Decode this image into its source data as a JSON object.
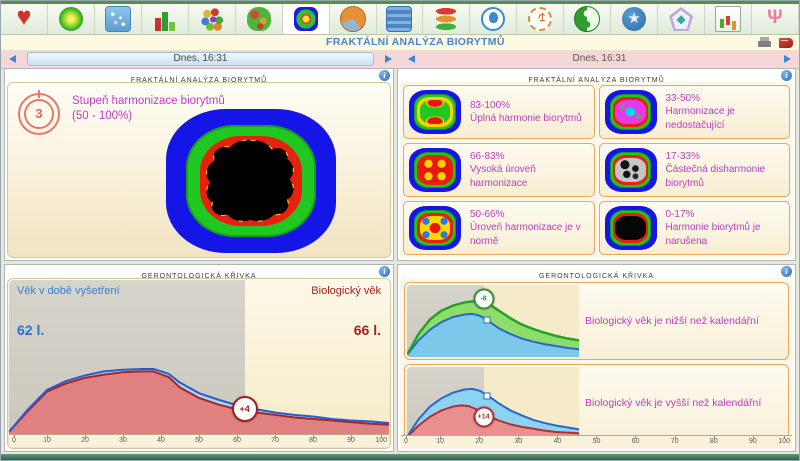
{
  "title_bar": {
    "title": "FRAKTÁLNÍ ANALÝZA BIORYTMŮ"
  },
  "toolbar": {
    "icons": [
      {
        "name": "heart",
        "active": false
      },
      {
        "name": "aura",
        "active": false
      },
      {
        "name": "scatter-card",
        "active": false
      },
      {
        "name": "bar-chart",
        "active": false
      },
      {
        "name": "molecules",
        "active": false
      },
      {
        "name": "brain-map",
        "active": false
      },
      {
        "name": "fractal",
        "active": true
      },
      {
        "name": "pie-chart",
        "active": false
      },
      {
        "name": "waveform",
        "active": false
      },
      {
        "name": "layers",
        "active": false
      },
      {
        "name": "head-profile",
        "active": false
      },
      {
        "name": "om",
        "active": false
      },
      {
        "name": "yin-yang",
        "active": false
      },
      {
        "name": "star",
        "active": false
      },
      {
        "name": "pentagon-cube",
        "active": false
      },
      {
        "name": "report-chart",
        "active": false
      },
      {
        "name": "antenna",
        "active": false
      }
    ]
  },
  "header_icons": [
    {
      "name": "printer"
    },
    {
      "name": "book"
    }
  ],
  "date_bar_left": {
    "label": "Dnes, 16:31"
  },
  "date_bar_right": {
    "label": "Dnes, 16:31"
  },
  "colors": {
    "accent_magenta": "#c23cc2",
    "label_blue": "#3a7fd0",
    "label_dark_red": "#a82020",
    "card_border_orange": "#e8a85a",
    "title_blue": "#4a86c8"
  },
  "panels": {
    "fractal_main": {
      "header": "FRAKTÁLNÍ ANALÝZA BIORYTMŮ",
      "gauge_value": "3",
      "label_line1": "Stupeň harmonizace biorytmů",
      "label_line2": "(50 - 100%)"
    },
    "fractal_legend": {
      "header": "FRAKTÁLNÍ ANALÝZA BIORYTMŮ",
      "cards": [
        {
          "range": "83-100%",
          "text": "Úplná harmonie biorytmů",
          "variant": "green-harmony"
        },
        {
          "range": "33-50%",
          "text": "Harmonizace je nedostačující",
          "variant": "magenta-cyan"
        },
        {
          "range": "66-83%",
          "text": "Vysoká úroveň harmonizace",
          "variant": "red-yellow"
        },
        {
          "range": "17-33%",
          "text": "Částečná disharmonie biorytmů",
          "variant": "gray-speckled"
        },
        {
          "range": "50-66%",
          "text": "Úroveň harmonizace je v normě",
          "variant": "yellow-red-blue"
        },
        {
          "range": "0-17%",
          "text": "Harmonie biorytmů je narušena",
          "variant": "black"
        }
      ]
    },
    "gero_main": {
      "header": "GERONTOLOGICKÁ KŘIVKA",
      "left_label": "Věk v době vyšetření",
      "left_value": "62 l.",
      "right_label": "Biologický věk",
      "right_value": "66 l."
    },
    "gero_legend": {
      "header": "GERONTOLOGICKÁ KŘIVKA",
      "cards": [
        {
          "marker": "-8",
          "text": "Biologický věk je nižší než kalendářní"
        },
        {
          "marker": "+14",
          "text": "Biologický věk je vyšší než kalendářní"
        }
      ],
      "axis_ticks": [
        0,
        10,
        20,
        30,
        40,
        50,
        60,
        70,
        80,
        90,
        100
      ]
    }
  },
  "chart_data": [
    {
      "id": "gero-main",
      "type": "area",
      "title": "Gerontologická křivka",
      "x_max": 100,
      "y_scale": 52,
      "divider_x": 62,
      "ticks": [
        0,
        10,
        20,
        30,
        40,
        50,
        60,
        70,
        80,
        90,
        100
      ],
      "current_age": 62,
      "biological_age": 66,
      "series": [
        {
          "name": "kalendarni-vek",
          "fill": "#a6d7f0",
          "stroke": "#2a5ad0",
          "width": 2,
          "points": [
            [
              0,
              0.02
            ],
            [
              5,
              0.3
            ],
            [
              10,
              0.54
            ],
            [
              15,
              0.65
            ],
            [
              20,
              0.72
            ],
            [
              25,
              0.77
            ],
            [
              30,
              0.79
            ],
            [
              35,
              0.8
            ],
            [
              38,
              0.8
            ],
            [
              42,
              0.74
            ],
            [
              45,
              0.63
            ],
            [
              50,
              0.5
            ],
            [
              55,
              0.42
            ],
            [
              60,
              0.35
            ],
            [
              62,
              0.32
            ],
            [
              65,
              0.3
            ],
            [
              70,
              0.26
            ],
            [
              75,
              0.23
            ],
            [
              80,
              0.21
            ],
            [
              85,
              0.18
            ],
            [
              90,
              0.16
            ],
            [
              95,
              0.15
            ],
            [
              100,
              0.13
            ]
          ]
        },
        {
          "name": "biologicky-vek",
          "fill": "#e08080",
          "stroke": "#a82525",
          "width": 2,
          "points": [
            [
              0,
              0.02
            ],
            [
              5,
              0.28
            ],
            [
              10,
              0.52
            ],
            [
              15,
              0.62
            ],
            [
              20,
              0.69
            ],
            [
              25,
              0.73
            ],
            [
              30,
              0.76
            ],
            [
              35,
              0.77
            ],
            [
              38,
              0.77
            ],
            [
              42,
              0.7
            ],
            [
              45,
              0.57
            ],
            [
              50,
              0.44
            ],
            [
              55,
              0.36
            ],
            [
              60,
              0.3
            ],
            [
              62,
              0.28
            ],
            [
              65,
              0.26
            ],
            [
              70,
              0.23
            ],
            [
              75,
              0.2
            ],
            [
              80,
              0.18
            ],
            [
              85,
              0.16
            ],
            [
              90,
              0.14
            ],
            [
              95,
              0.12
            ],
            [
              100,
              0.11
            ]
          ]
        }
      ],
      "marker": {
        "x": 62,
        "y": 0.3,
        "label": "+4",
        "color": "#a02020",
        "d": 22
      }
    },
    {
      "id": "gero-mini-1",
      "type": "area",
      "title": "Biologický věk nižší než kalendářní",
      "x_max": 45,
      "y_scale": 88,
      "divider_x": 20,
      "series": [
        {
          "name": "kalendarni-vek",
          "fill": "#8edc6a",
          "stroke": "#28a028",
          "width": 2.5,
          "points": [
            [
              0,
              0.02
            ],
            [
              3,
              0.35
            ],
            [
              6,
              0.58
            ],
            [
              9,
              0.72
            ],
            [
              12,
              0.8
            ],
            [
              15,
              0.85
            ],
            [
              18,
              0.87
            ],
            [
              21,
              0.84
            ],
            [
              24,
              0.72
            ],
            [
              27,
              0.6
            ],
            [
              30,
              0.5
            ],
            [
              33,
              0.43
            ],
            [
              36,
              0.37
            ],
            [
              39,
              0.32
            ],
            [
              42,
              0.28
            ],
            [
              45,
              0.25
            ]
          ]
        },
        {
          "name": "biologicky-vek",
          "fill": "#7cc8ea",
          "stroke": "#2a68c8",
          "width": 2,
          "points": [
            [
              0,
              0.02
            ],
            [
              3,
              0.25
            ],
            [
              6,
              0.42
            ],
            [
              9,
              0.54
            ],
            [
              12,
              0.62
            ],
            [
              15,
              0.66
            ],
            [
              17,
              0.67
            ],
            [
              19,
              0.64
            ],
            [
              21,
              0.57
            ],
            [
              24,
              0.44
            ],
            [
              27,
              0.35
            ],
            [
              30,
              0.28
            ],
            [
              33,
              0.23
            ],
            [
              36,
              0.19
            ],
            [
              39,
              0.16
            ],
            [
              42,
              0.13
            ],
            [
              45,
              0.11
            ]
          ]
        }
      ],
      "marker": {
        "x": 20,
        "y": 0.9,
        "label": "-8",
        "color": "#3a8a3a",
        "d": 17
      },
      "dot": [
        21,
        0.58
      ]
    },
    {
      "id": "gero-mini-2",
      "type": "area",
      "title": "Biologický věk vyšší než kalendářní",
      "x_max": 45,
      "y_scale": 88,
      "divider_x": 20,
      "series": [
        {
          "name": "biologicky-vek",
          "fill": "#8ed2f2",
          "stroke": "#2a68c8",
          "width": 2,
          "points": [
            [
              0,
              0.02
            ],
            [
              3,
              0.3
            ],
            [
              6,
              0.5
            ],
            [
              9,
              0.63
            ],
            [
              12,
              0.72
            ],
            [
              15,
              0.77
            ],
            [
              17,
              0.78
            ],
            [
              19,
              0.75
            ],
            [
              21,
              0.68
            ],
            [
              24,
              0.55
            ],
            [
              27,
              0.44
            ],
            [
              30,
              0.36
            ],
            [
              33,
              0.29
            ],
            [
              36,
              0.24
            ],
            [
              39,
              0.2
            ],
            [
              42,
              0.17
            ],
            [
              45,
              0.14
            ]
          ]
        },
        {
          "name": "kalendarni-vek",
          "fill": "#e89090",
          "stroke": "#b03030",
          "width": 2,
          "points": [
            [
              0,
              0.02
            ],
            [
              3,
              0.2
            ],
            [
              6,
              0.34
            ],
            [
              9,
              0.44
            ],
            [
              12,
              0.5
            ],
            [
              14,
              0.52
            ],
            [
              16,
              0.51
            ],
            [
              18,
              0.46
            ],
            [
              20,
              0.39
            ],
            [
              22,
              0.33
            ],
            [
              24,
              0.28
            ],
            [
              27,
              0.22
            ],
            [
              30,
              0.18
            ],
            [
              33,
              0.15
            ],
            [
              36,
              0.12
            ],
            [
              39,
              0.1
            ],
            [
              42,
              0.09
            ],
            [
              45,
              0.08
            ]
          ]
        }
      ],
      "marker": {
        "x": 20,
        "y": 0.34,
        "label": "+14",
        "color": "#b03030",
        "d": 17
      },
      "dot": [
        21,
        0.66
      ]
    }
  ]
}
